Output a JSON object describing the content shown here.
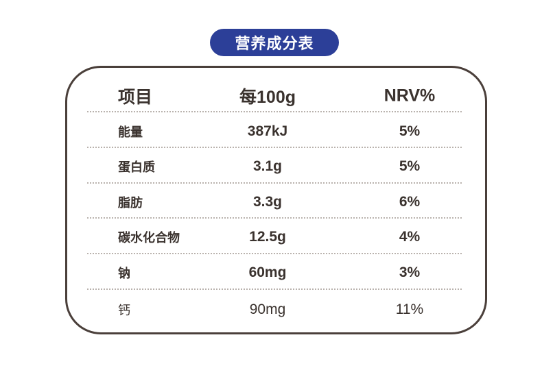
{
  "header": {
    "title": "营养成分表"
  },
  "table": {
    "columns": [
      "项目",
      "每100g",
      "NRV%"
    ],
    "rows": [
      [
        "能量",
        "387kJ",
        "5%"
      ],
      [
        "蛋白质",
        "3.1g",
        "5%"
      ],
      [
        "脂肪",
        "3.3g",
        "6%"
      ],
      [
        "碳水化合物",
        "12.5g",
        "4%"
      ],
      [
        "钠",
        "60mg",
        "3%"
      ],
      [
        "钙",
        "90mg",
        "11%"
      ]
    ]
  }
}
